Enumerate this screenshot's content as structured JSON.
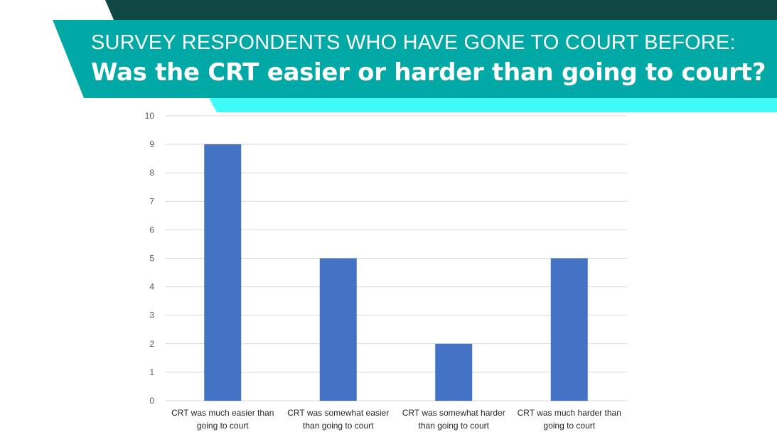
{
  "header": {
    "subtitle": "SURVEY RESPONDENTS WHO HAVE GONE TO COURT BEFORE:",
    "title": "Was the CRT easier or harder than going to court?"
  },
  "colors": {
    "banner_dark": "#0f4744",
    "banner_teal": "#00a9a6",
    "banner_cyan": "#3ffbf8",
    "bar": "#4472c4",
    "grid": "#d9d9d9"
  },
  "chart_data": {
    "type": "bar",
    "categories": [
      [
        "CRT was much easier than",
        "going to court"
      ],
      [
        "CRT was somewhat easier",
        "than going to court"
      ],
      [
        "CRT was somewhat harder",
        "than going to court"
      ],
      [
        "CRT was much harder than",
        "going to court"
      ]
    ],
    "values": [
      9,
      5,
      2,
      5
    ],
    "ylim": [
      0,
      10
    ],
    "yticks": [
      "0",
      "1",
      "2",
      "3",
      "4",
      "5",
      "6",
      "7",
      "8",
      "9",
      "10"
    ],
    "grid": true,
    "xlabel": "",
    "ylabel": ""
  }
}
